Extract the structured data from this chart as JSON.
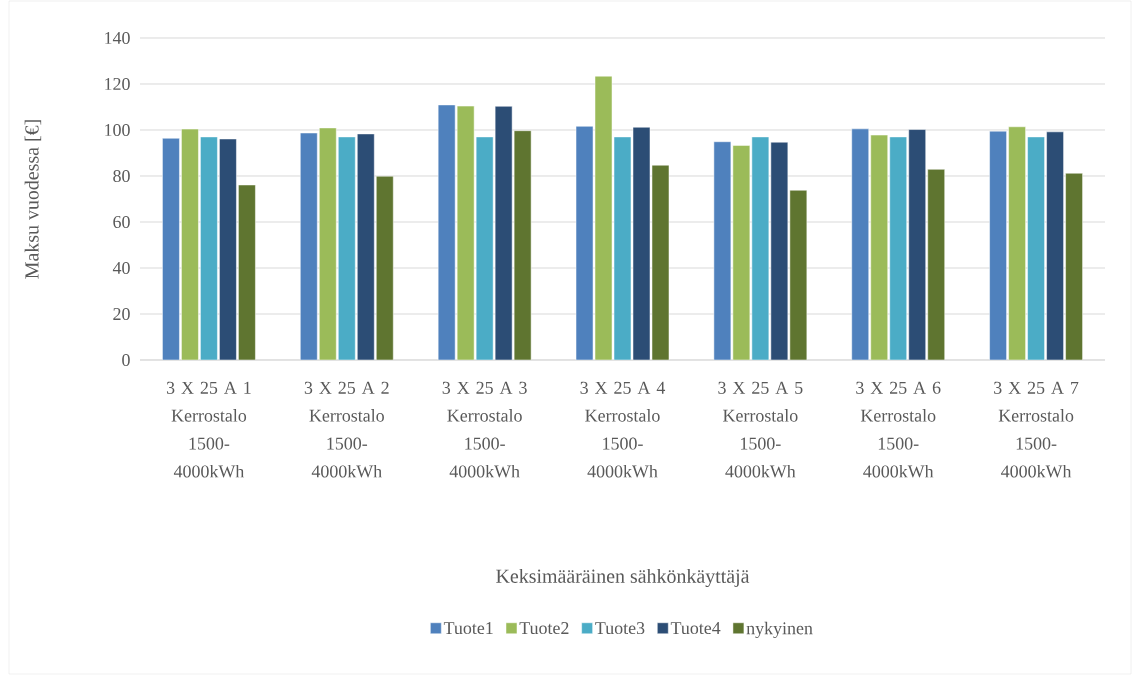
{
  "chart_data": {
    "type": "bar",
    "categories": [
      "3 X 25 A 1 Kerrostalo 1500-4000kWh",
      "3 X 25 A 2 Kerrostalo 1500-4000kWh",
      "3 X 25 A 3 Kerrostalo 1500-4000kWh",
      "3 X 25 A 4 Kerrostalo 1500-4000kWh",
      "3 X 25 A 5 Kerrostalo 1500-4000kWh",
      "3 X 25 A 6 Kerrostalo 1500-4000kWh",
      "3 X 25 A 7 Kerrostalo 1500-4000kWh"
    ],
    "series": [
      {
        "name": "Tuote1",
        "color": "#4f81bd",
        "values": [
          96.4,
          98.7,
          110.9,
          101.6,
          94.9,
          100.5,
          99.5
        ]
      },
      {
        "name": "Tuote2",
        "color": "#9bbb59",
        "values": [
          100.4,
          100.9,
          110.4,
          123.4,
          93.3,
          97.8,
          101.4
        ]
      },
      {
        "name": "Tuote3",
        "color": "#4bacc6",
        "values": [
          97.0,
          97.0,
          97.0,
          97.0,
          97.0,
          97.0,
          97.0
        ]
      },
      {
        "name": "Tuote4",
        "color": "#2c4d75",
        "values": [
          96.1,
          98.3,
          110.3,
          101.2,
          94.7,
          100.2,
          99.2
        ]
      },
      {
        "name": "nykyinen",
        "color": "#5f7530",
        "values": [
          76.1,
          79.9,
          99.7,
          84.7,
          73.8,
          82.9,
          81.2
        ]
      }
    ],
    "xlabel": "Keksimääräinen sähkönkäyttäjä",
    "ylabel": "Maksu vuodessa [€]",
    "ylim": [
      0,
      140
    ],
    "yticks": [
      0,
      20,
      40,
      60,
      80,
      100,
      120,
      140
    ],
    "grid": "y",
    "legend": "bottom"
  }
}
